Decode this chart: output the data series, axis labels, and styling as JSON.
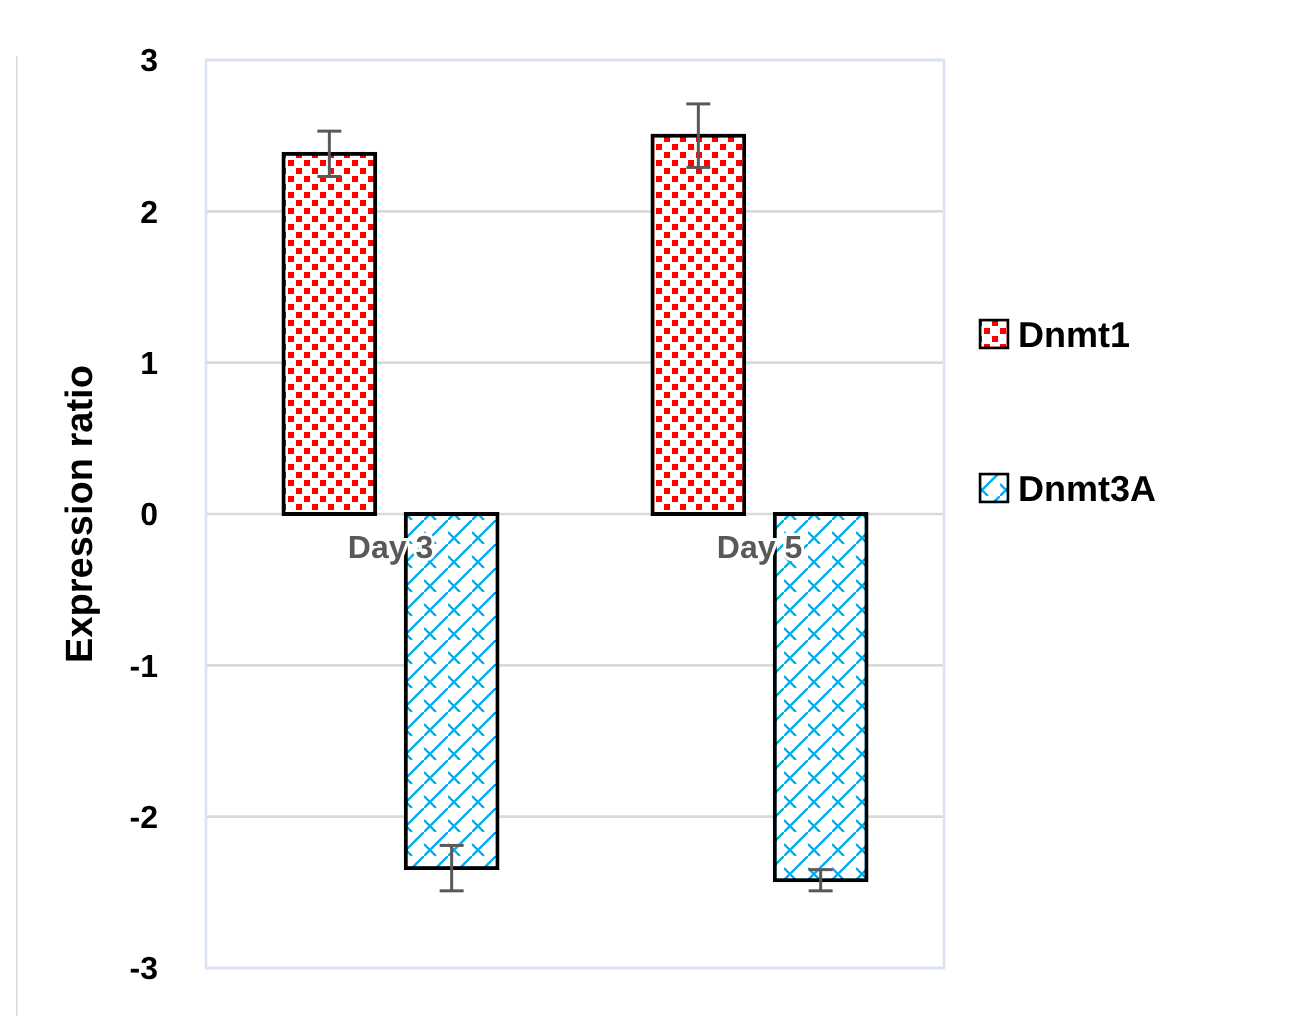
{
  "chart_data": {
    "type": "bar",
    "ylabel": "Expression ratio",
    "categories": [
      "Day 3",
      "Day 5"
    ],
    "series": [
      {
        "name": "Dnmt1",
        "color": "#ff0000",
        "values": [
          2.38,
          2.5
        ],
        "errors": [
          0.15,
          0.21
        ]
      },
      {
        "name": "Dnmt3A",
        "color": "#00b0f0",
        "values": [
          -2.34,
          -2.42
        ],
        "errors": [
          0.15,
          0.07
        ]
      }
    ],
    "ylim": [
      -3,
      3
    ],
    "yticks": [
      -3,
      -2,
      -1,
      0,
      1,
      2,
      3
    ],
    "grid": "y",
    "legend": "right"
  }
}
